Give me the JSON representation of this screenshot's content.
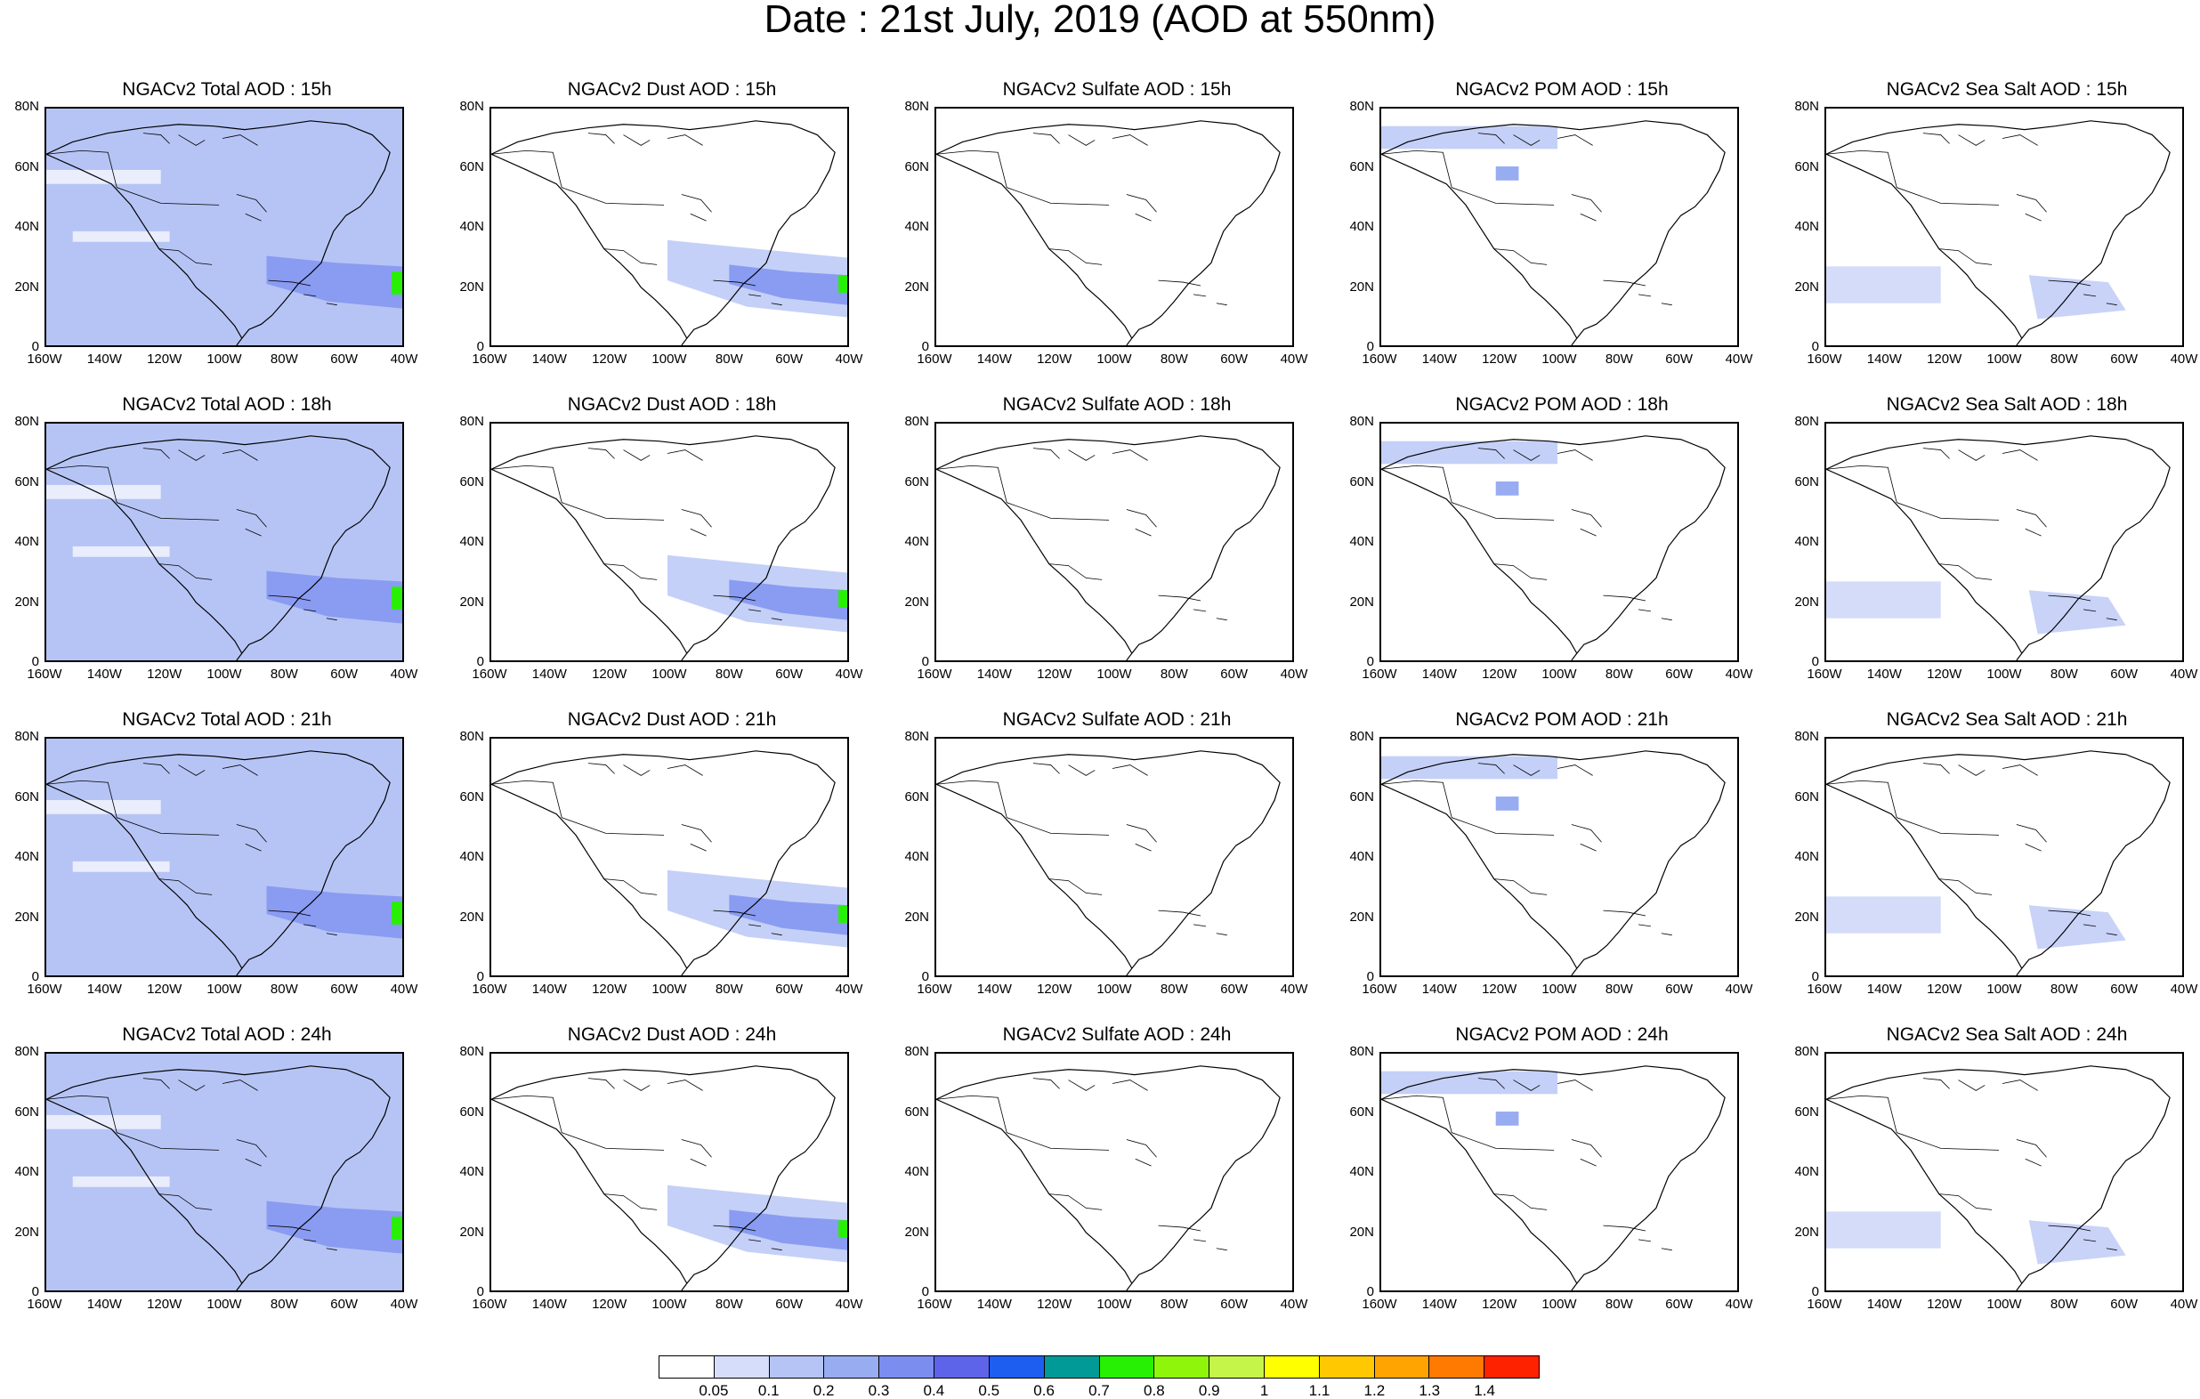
{
  "title": "Date : 21st July, 2019 (AOD at 550nm)",
  "lat_labels": [
    "80N",
    "60N",
    "40N",
    "20N",
    "0"
  ],
  "lon_labels": [
    "160W",
    "140W",
    "120W",
    "100W",
    "80W",
    "60W",
    "40W"
  ],
  "columns": [
    {
      "key": "total",
      "color": "#b6c4f5"
    },
    {
      "key": "dust",
      "color": "#c4d0f7"
    },
    {
      "key": "sulfate",
      "color": "#ffffff"
    },
    {
      "key": "pom",
      "color": "#c4d0f7"
    },
    {
      "key": "seasalt",
      "color": "#c9d3f8"
    }
  ],
  "panels": [
    [
      "NGACv2 Total AOD : 15h",
      "NGACv2 Dust AOD : 15h",
      "NGACv2 Sulfate AOD : 15h",
      "NGACv2 POM AOD : 15h",
      "NGACv2 Sea Salt AOD : 15h"
    ],
    [
      "NGACv2 Total AOD : 18h",
      "NGACv2 Dust AOD : 18h",
      "NGACv2 Sulfate AOD : 18h",
      "NGACv2 POM AOD : 18h",
      "NGACv2 Sea Salt AOD : 18h"
    ],
    [
      "NGACv2 Total AOD : 21h",
      "NGACv2 Dust AOD : 21h",
      "NGACv2 Sulfate AOD : 21h",
      "NGACv2 POM AOD : 21h",
      "NGACv2 Sea Salt AOD : 21h"
    ],
    [
      "NGACv2 Total AOD : 24h",
      "NGACv2 Dust AOD : 24h",
      "NGACv2 Sulfate AOD : 24h",
      "NGACv2 POM AOD : 24h",
      "NGACv2 Sea Salt  AOD : 24h"
    ]
  ],
  "colorbar": {
    "labels": [
      "0.05",
      "0.1",
      "0.2",
      "0.3",
      "0.4",
      "0.5",
      "0.6",
      "0.7",
      "0.8",
      "0.9",
      "1",
      "1.1",
      "1.2",
      "1.3",
      "1.4"
    ],
    "colors": [
      "#ffffff",
      "#d5ddfa",
      "#b6c4f5",
      "#98acf2",
      "#7b8ef0",
      "#5d64ea",
      "#1d5ef0",
      "#029a96",
      "#28f005",
      "#8ff50a",
      "#c6f54a",
      "#ffff00",
      "#ffc800",
      "#ffa400",
      "#ff7a00",
      "#ff2200"
    ]
  }
}
